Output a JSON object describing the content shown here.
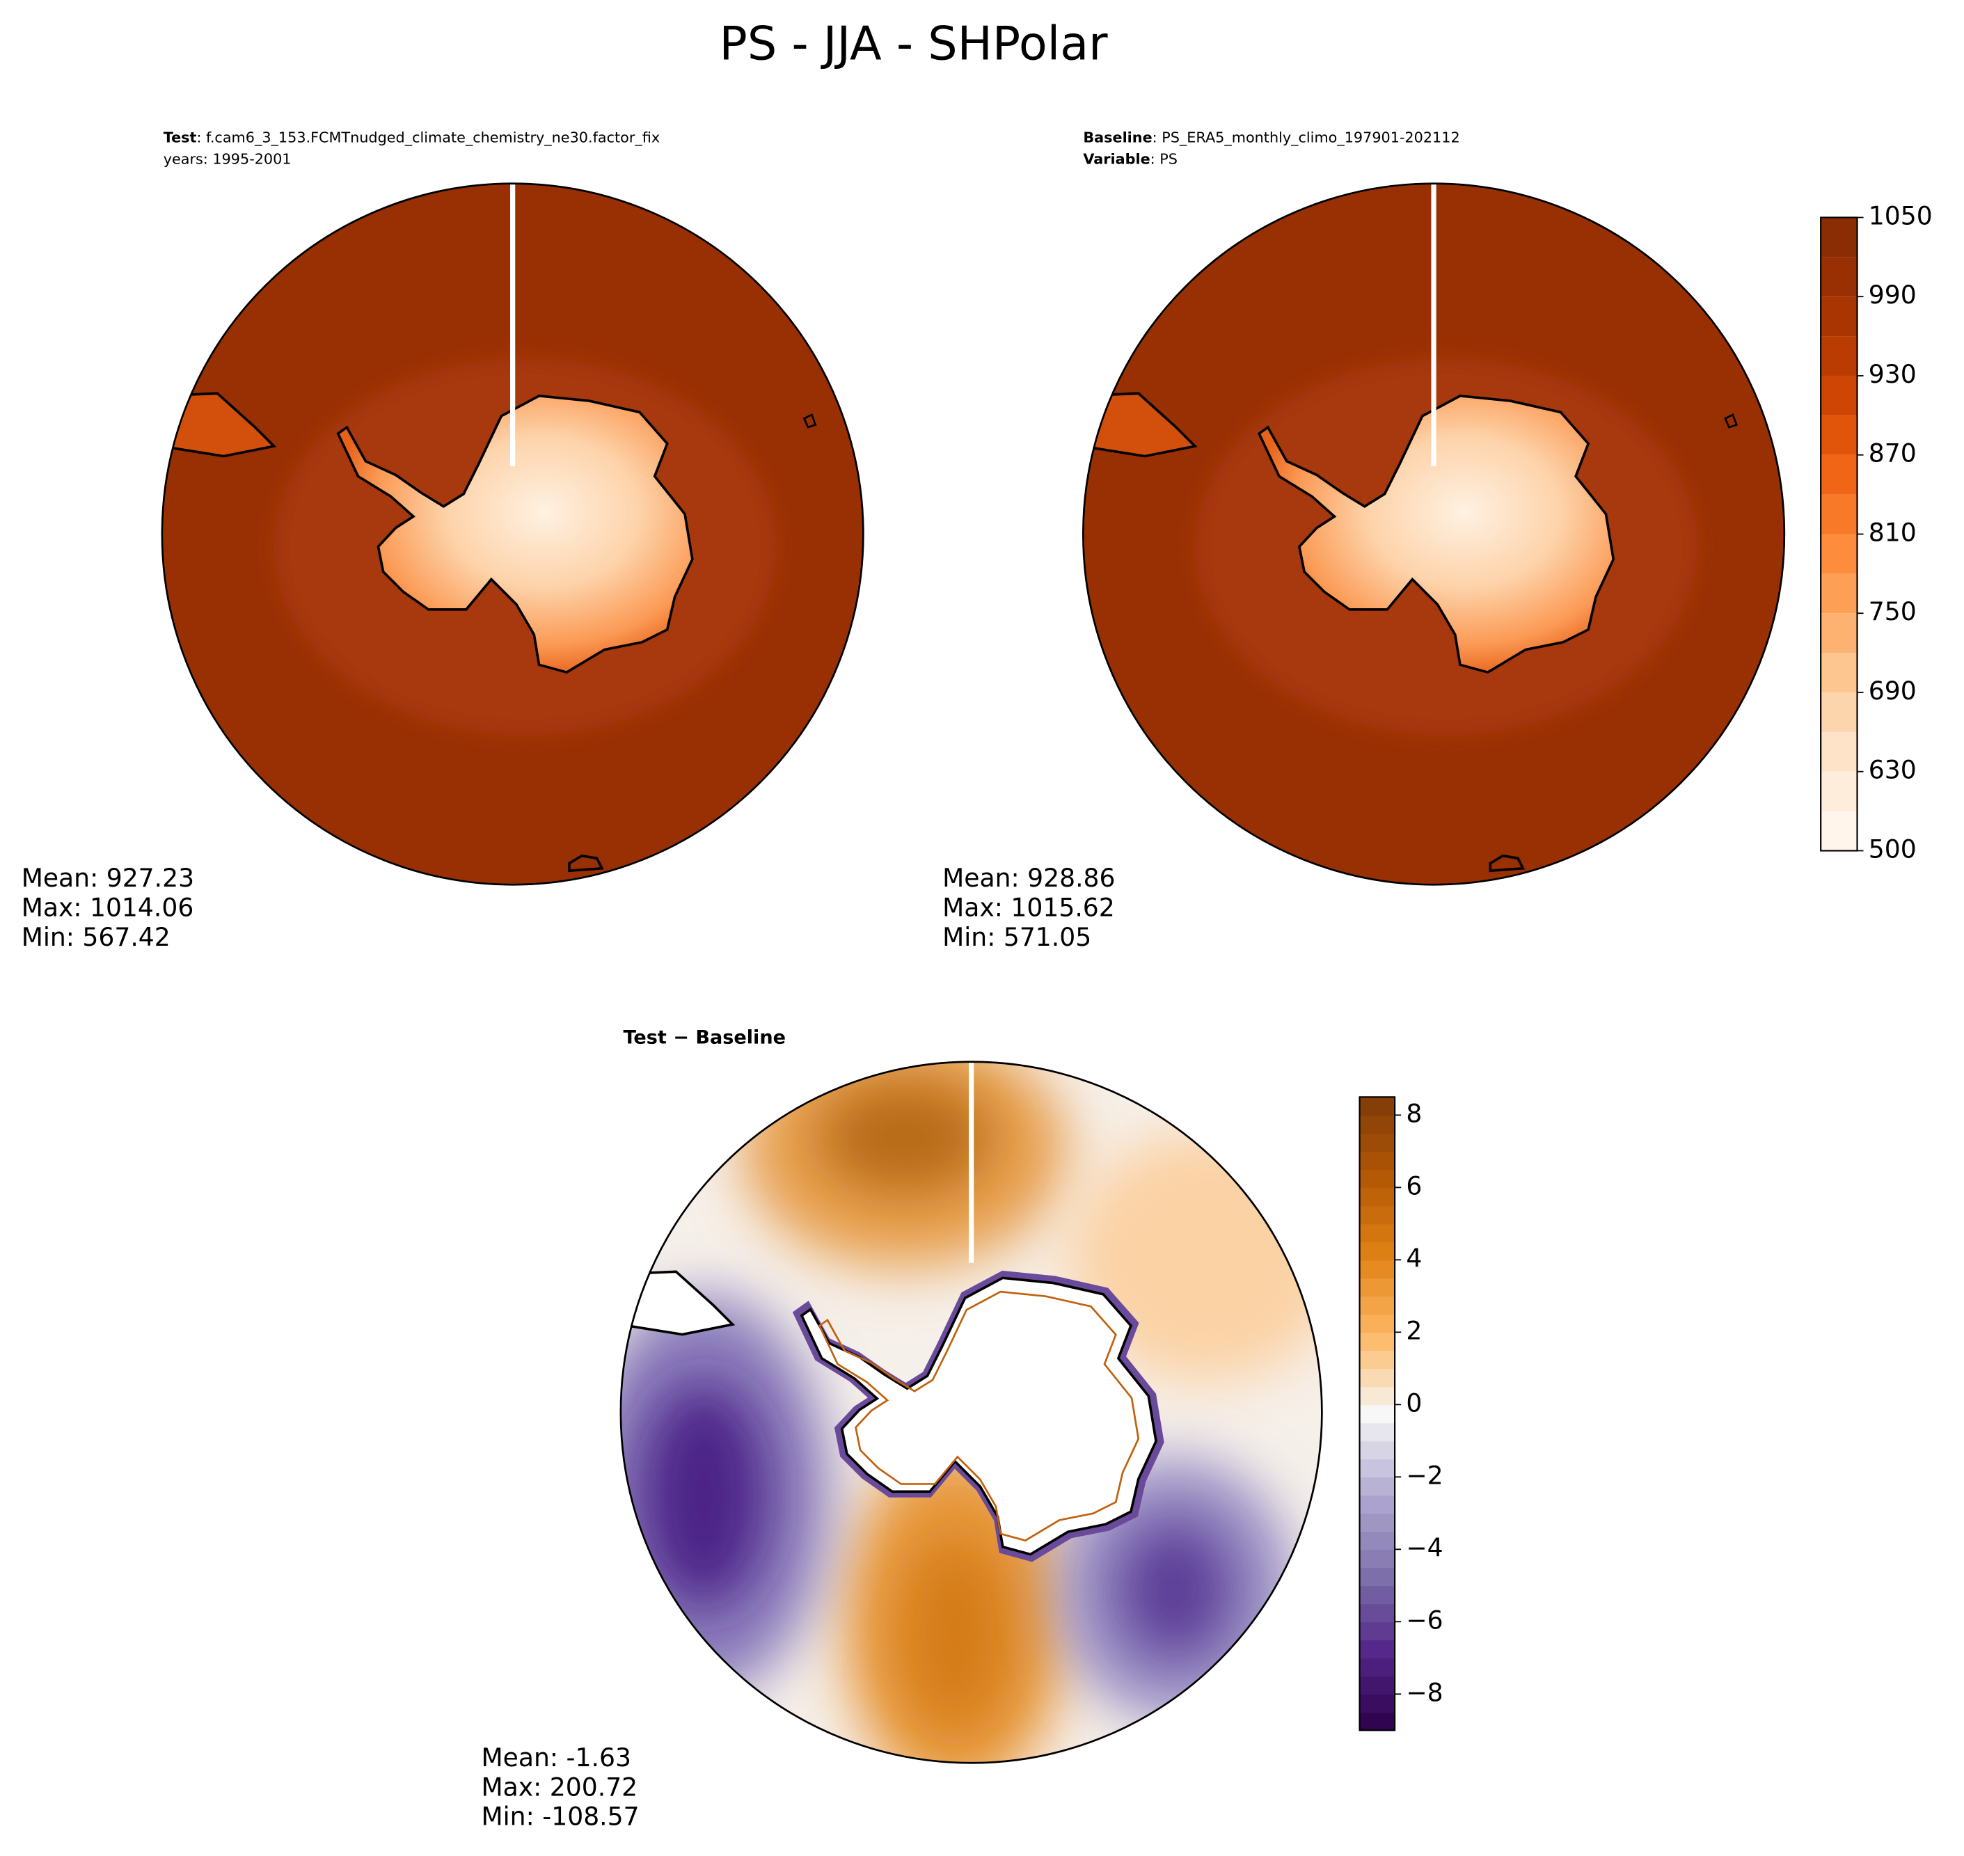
{
  "title": "PS - JJA - SHPolar",
  "panels": [
    {
      "header": [
        {
          "key": "Test",
          "value": ": f.cam6_3_153.FCMTnudged_climate_chemistry_ne30.factor_fix"
        },
        {
          "key": null,
          "value": "years: 1995-2001"
        }
      ],
      "stats": [
        "Mean: 927.23",
        "Max: 1014.06",
        "Min: 567.42"
      ]
    },
    {
      "header": [
        {
          "key": "Baseline",
          "value": ": PS_ERA5_monthly_climo_197901-202112"
        },
        {
          "key": "Variable",
          "value": ": PS"
        }
      ],
      "stats": [
        "Mean: 928.86",
        "Max: 1015.62",
        "Min: 571.05"
      ]
    },
    {
      "header": [
        {
          "key": "Test − Baseline",
          "value": null
        }
      ],
      "stats": [
        "Mean: -1.63",
        "Max: 200.72",
        "Min: -108.57"
      ]
    }
  ],
  "colorbars": [
    {
      "lim": [
        500,
        1050
      ],
      "levels": [
        500,
        600,
        630,
        660,
        690,
        720,
        750,
        780,
        810,
        840,
        870,
        900,
        930,
        960,
        990,
        1020,
        1050
      ],
      "ticks": [
        500,
        630,
        690,
        750,
        810,
        870,
        930,
        990,
        1050
      ],
      "colors": [
        "#fff5eb",
        "#feeddb",
        "#fee3c8",
        "#fdd5ad",
        "#fdc590",
        "#fdb272",
        "#fd9f55",
        "#fd8c3d",
        "#f87a28",
        "#f06616",
        "#e1550a",
        "#cf4604",
        "#bb3c02",
        "#a93503",
        "#993004",
        "#8a2c04"
      ]
    },
    {
      "lim": [
        -9,
        8.5
      ],
      "ticks": [
        {
          "value": -8,
          "label": "−8"
        },
        {
          "value": -6,
          "label": "−6"
        },
        {
          "value": -4,
          "label": "−4"
        },
        {
          "value": -2,
          "label": "−2"
        },
        0,
        2,
        4,
        6,
        8
      ],
      "colors": [
        "#2d004b",
        "#542788",
        "#8073ac",
        "#b2abd2",
        "#f7f7f7",
        "#fdb863",
        "#e08214",
        "#b35806",
        "#7f3b08"
      ]
    }
  ]
}
